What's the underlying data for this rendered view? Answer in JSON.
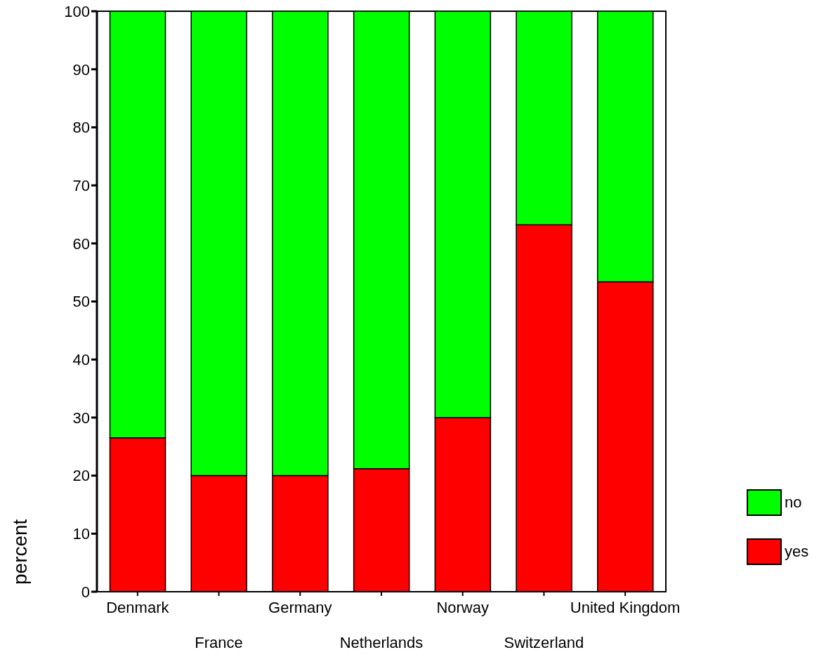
{
  "chart_data": {
    "type": "bar",
    "stacked": true,
    "ylabel": "percent",
    "categories": [
      "Denmark",
      "France",
      "Germany",
      "Netherlands",
      "Norway",
      "Switzerland",
      "United Kingdom"
    ],
    "series": [
      {
        "name": "yes",
        "color": "#ff0000",
        "values": [
          26.5,
          20,
          20,
          21.2,
          30,
          63.2,
          53.4
        ]
      },
      {
        "name": "no",
        "color": "#00ff00",
        "values": [
          73.5,
          80,
          80,
          78.8,
          70,
          36.8,
          46.6
        ]
      }
    ],
    "ylim": [
      0,
      100
    ],
    "yticks": [
      0,
      10,
      20,
      30,
      40,
      50,
      60,
      70,
      80,
      90,
      100
    ],
    "grid": false,
    "legend": "bottom right"
  }
}
